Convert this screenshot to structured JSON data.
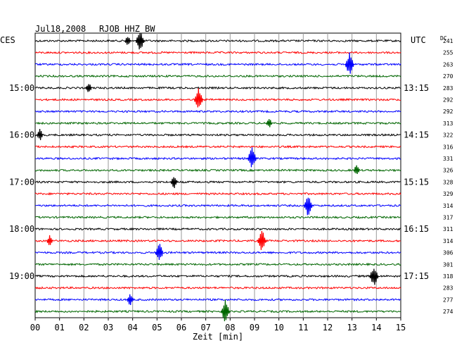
{
  "header": {
    "date": "Jul18,2008",
    "station": "RJOB HHZ BW",
    "left_zone": "CES",
    "right_zone": "UTC",
    "dc_label": "DC"
  },
  "chart_data": {
    "type": "line",
    "title": "Jul18,2008  RJOB HHZ BW",
    "xlabel": "Zeit [min]",
    "xlim": [
      0,
      15
    ],
    "x_ticks": [
      "00",
      "01",
      "02",
      "03",
      "04",
      "05",
      "06",
      "07",
      "08",
      "09",
      "10",
      "11",
      "12",
      "13",
      "14",
      "15"
    ],
    "grid": true,
    "trace_colors": [
      "#000000",
      "#ff0000",
      "#0000ff",
      "#006600"
    ],
    "left_time_labels": [
      {
        "trace": 4,
        "label": "15:00"
      },
      {
        "trace": 8,
        "label": "16:00"
      },
      {
        "trace": 12,
        "label": "17:00"
      },
      {
        "trace": 16,
        "label": "18:00"
      },
      {
        "trace": 20,
        "label": "19:00"
      }
    ],
    "right_time_labels": [
      {
        "trace": 4,
        "label": "13:15"
      },
      {
        "trace": 8,
        "label": "14:15"
      },
      {
        "trace": 12,
        "label": "15:15"
      },
      {
        "trace": 16,
        "label": "16:15"
      },
      {
        "trace": 20,
        "label": "17:15"
      }
    ],
    "dc_offsets": [
      241,
      255,
      263,
      270,
      283,
      292,
      292,
      313,
      322,
      316,
      331,
      326,
      328,
      329,
      314,
      317,
      311,
      314,
      306,
      301,
      318,
      283,
      277,
      274
    ],
    "events": [
      {
        "trace": 0,
        "minute": 4.3,
        "amp": 1.0
      },
      {
        "trace": 0,
        "minute": 3.8,
        "amp": 0.35
      },
      {
        "trace": 2,
        "minute": 12.9,
        "amp": 1.0
      },
      {
        "trace": 4,
        "minute": 2.2,
        "amp": 0.4
      },
      {
        "trace": 5,
        "minute": 6.7,
        "amp": 1.0
      },
      {
        "trace": 7,
        "minute": 9.6,
        "amp": 0.35
      },
      {
        "trace": 8,
        "minute": 0.2,
        "amp": 0.45
      },
      {
        "trace": 10,
        "minute": 8.9,
        "amp": 1.0
      },
      {
        "trace": 11,
        "minute": 13.2,
        "amp": 0.45
      },
      {
        "trace": 12,
        "minute": 5.7,
        "amp": 0.5
      },
      {
        "trace": 14,
        "minute": 11.2,
        "amp": 1.0
      },
      {
        "trace": 17,
        "minute": 9.3,
        "amp": 1.0
      },
      {
        "trace": 17,
        "minute": 0.6,
        "amp": 0.4
      },
      {
        "trace": 18,
        "minute": 5.1,
        "amp": 0.8
      },
      {
        "trace": 20,
        "minute": 13.9,
        "amp": 1.0
      },
      {
        "trace": 22,
        "minute": 3.9,
        "amp": 0.5
      },
      {
        "trace": 23,
        "minute": 7.8,
        "amp": 1.0
      }
    ]
  }
}
